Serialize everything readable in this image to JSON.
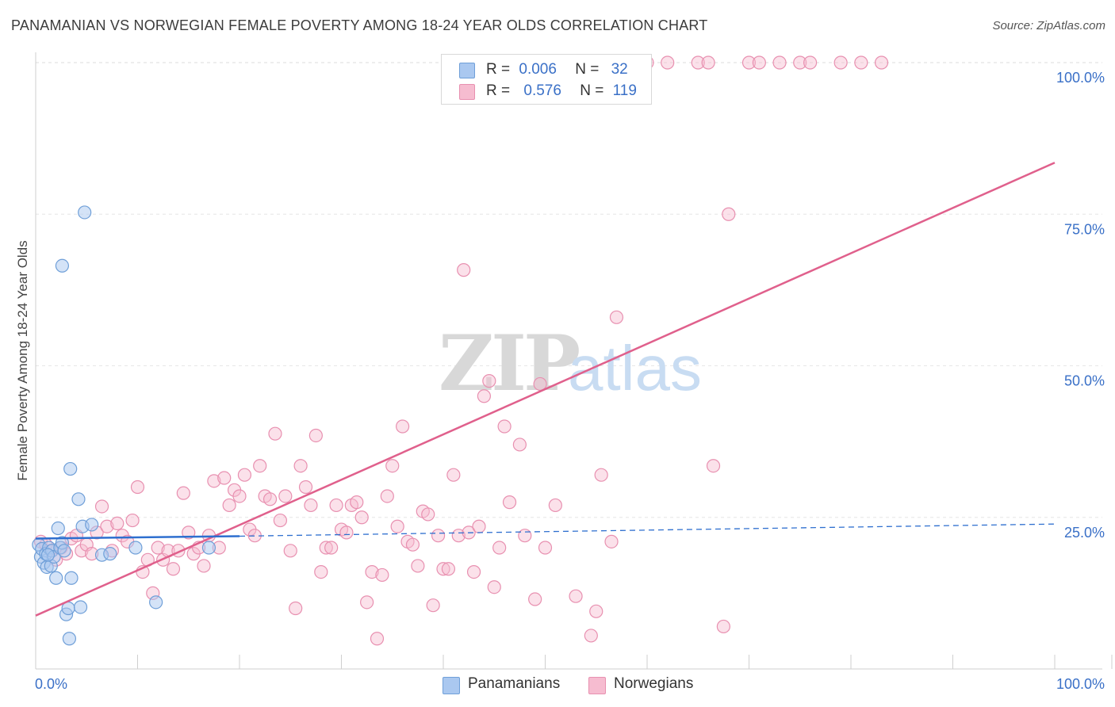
{
  "title": "PANAMANIAN VS NORWEGIAN FEMALE POVERTY AMONG 18-24 YEAR OLDS CORRELATION CHART",
  "source": "Source: ZipAtlas.com",
  "watermark": {
    "zip": "ZIP",
    "atlas": "atlas"
  },
  "legend_top": {
    "rows": [
      {
        "r_label": "R =",
        "r_value": "0.006",
        "n_label": "N =",
        "n_value": "32"
      },
      {
        "r_label": "R =",
        "r_value": "0.576",
        "n_label": "N =",
        "n_value": "119"
      }
    ]
  },
  "legend_bottom": {
    "series_a": "Panamanians",
    "series_b": "Norwegians"
  },
  "colors": {
    "blue_fill": "#aac8f0",
    "blue_stroke": "#6f9fd8",
    "blue_line": "#2e6fcf",
    "pink_fill": "#f6bcd0",
    "pink_stroke": "#e890b0",
    "pink_line": "#e0608c",
    "axis_label": "#3a70c7",
    "grid": "#e6e6e6"
  },
  "chart_data": {
    "type": "scatter",
    "title": "PANAMANIAN VS NORWEGIAN FEMALE POVERTY AMONG 18-24 YEAR OLDS CORRELATION CHART",
    "xlabel": "",
    "ylabel": "Female Poverty Among 18-24 Year Olds",
    "xlim": [
      0,
      100
    ],
    "ylim": [
      0,
      100
    ],
    "x_tick_labels": [
      "0.0%",
      "100.0%"
    ],
    "y_tick_labels": [
      "25.0%",
      "50.0%",
      "75.0%",
      "100.0%"
    ],
    "y_ticks": [
      25,
      50,
      75,
      100
    ],
    "grid": true,
    "legend_placement": "top-center",
    "series": [
      {
        "name": "Panamanians",
        "R": 0.006,
        "N": 32,
        "trend": {
          "x0": 0,
          "y0": 21.5,
          "x1": 20,
          "y1": 21.9,
          "dash_to_x": 100,
          "dash_to_y": 23.9
        },
        "points": [
          [
            0.3,
            20.5
          ],
          [
            0.5,
            18.5
          ],
          [
            0.6,
            19.8
          ],
          [
            0.8,
            17.5
          ],
          [
            1.0,
            19.0
          ],
          [
            1.1,
            16.8
          ],
          [
            1.3,
            20.0
          ],
          [
            1.5,
            17.0
          ],
          [
            1.6,
            19.5
          ],
          [
            1.8,
            18.5
          ],
          [
            2.0,
            15.0
          ],
          [
            2.2,
            23.2
          ],
          [
            2.4,
            20.0
          ],
          [
            2.6,
            20.8
          ],
          [
            2.8,
            19.5
          ],
          [
            3.0,
            9.0
          ],
          [
            3.2,
            10.0
          ],
          [
            3.3,
            5.0
          ],
          [
            3.5,
            15.0
          ],
          [
            3.4,
            33.0
          ],
          [
            4.2,
            28.0
          ],
          [
            4.4,
            10.2
          ],
          [
            4.6,
            23.5
          ],
          [
            4.8,
            75.3
          ],
          [
            2.6,
            66.5
          ],
          [
            5.5,
            23.8
          ],
          [
            6.5,
            18.8
          ],
          [
            7.3,
            19.0
          ],
          [
            9.8,
            20.0
          ],
          [
            11.8,
            11.0
          ],
          [
            17.0,
            20.0
          ],
          [
            1.2,
            18.8
          ]
        ]
      },
      {
        "name": "Norwegians",
        "R": 0.576,
        "N": 119,
        "trend": {
          "x0": 0,
          "y0": 8.8,
          "x1": 100,
          "y1": 83.5
        },
        "points": [
          [
            0.5,
            21.0
          ],
          [
            1.0,
            20.5
          ],
          [
            1.5,
            19.5
          ],
          [
            2.0,
            18.0
          ],
          [
            2.5,
            20.0
          ],
          [
            3.0,
            19.0
          ],
          [
            3.5,
            21.5
          ],
          [
            4.0,
            22.0
          ],
          [
            4.5,
            19.5
          ],
          [
            5.0,
            20.5
          ],
          [
            5.5,
            19.0
          ],
          [
            6.0,
            22.5
          ],
          [
            6.5,
            26.8
          ],
          [
            7.0,
            23.5
          ],
          [
            7.5,
            19.5
          ],
          [
            8.0,
            24.0
          ],
          [
            8.5,
            22.0
          ],
          [
            9.0,
            21.0
          ],
          [
            9.5,
            24.5
          ],
          [
            10.0,
            30.0
          ],
          [
            10.5,
            16.0
          ],
          [
            11.0,
            18.0
          ],
          [
            11.5,
            12.5
          ],
          [
            12.0,
            20.0
          ],
          [
            12.5,
            18.0
          ],
          [
            13.0,
            19.5
          ],
          [
            13.5,
            16.5
          ],
          [
            14.0,
            19.5
          ],
          [
            14.5,
            29.0
          ],
          [
            15.0,
            22.5
          ],
          [
            15.5,
            19.0
          ],
          [
            16.0,
            20.0
          ],
          [
            16.5,
            17.0
          ],
          [
            17.0,
            22.0
          ],
          [
            17.5,
            31.0
          ],
          [
            18.0,
            20.0
          ],
          [
            18.5,
            31.5
          ],
          [
            19.0,
            27.0
          ],
          [
            19.5,
            29.5
          ],
          [
            20.0,
            28.5
          ],
          [
            20.5,
            32.0
          ],
          [
            21.0,
            23.0
          ],
          [
            21.5,
            22.0
          ],
          [
            22.0,
            33.5
          ],
          [
            22.5,
            28.5
          ],
          [
            23.0,
            28.0
          ],
          [
            23.5,
            38.8
          ],
          [
            24.0,
            24.5
          ],
          [
            24.5,
            28.5
          ],
          [
            25.0,
            19.5
          ],
          [
            25.5,
            10.0
          ],
          [
            26.0,
            33.5
          ],
          [
            26.5,
            30.0
          ],
          [
            27.0,
            27.0
          ],
          [
            27.5,
            38.5
          ],
          [
            28.0,
            16.0
          ],
          [
            28.5,
            20.0
          ],
          [
            29.0,
            20.0
          ],
          [
            29.5,
            27.0
          ],
          [
            30.0,
            23.0
          ],
          [
            30.5,
            22.5
          ],
          [
            31.0,
            27.0
          ],
          [
            31.5,
            27.5
          ],
          [
            32.0,
            25.0
          ],
          [
            32.5,
            11.0
          ],
          [
            33.0,
            16.0
          ],
          [
            33.5,
            5.0
          ],
          [
            34.0,
            15.5
          ],
          [
            34.5,
            28.5
          ],
          [
            35.0,
            33.5
          ],
          [
            35.5,
            23.5
          ],
          [
            36.0,
            40.0
          ],
          [
            36.5,
            21.0
          ],
          [
            37.0,
            20.5
          ],
          [
            37.5,
            17.0
          ],
          [
            38.0,
            26.0
          ],
          [
            38.5,
            25.5
          ],
          [
            39.0,
            10.5
          ],
          [
            39.5,
            22.0
          ],
          [
            40.0,
            16.5
          ],
          [
            40.5,
            16.5
          ],
          [
            41.0,
            32.0
          ],
          [
            41.5,
            22.0
          ],
          [
            42.0,
            65.8
          ],
          [
            42.5,
            22.5
          ],
          [
            43.0,
            16.0
          ],
          [
            43.5,
            23.5
          ],
          [
            44.0,
            45.0
          ],
          [
            44.5,
            47.5
          ],
          [
            45.0,
            13.5
          ],
          [
            45.5,
            20.0
          ],
          [
            46.0,
            40.0
          ],
          [
            46.5,
            27.5
          ],
          [
            47.5,
            37.0
          ],
          [
            48.0,
            22.0
          ],
          [
            49.0,
            11.5
          ],
          [
            49.5,
            47.0
          ],
          [
            50.0,
            20.0
          ],
          [
            51.0,
            27.0
          ],
          [
            53.0,
            12.0
          ],
          [
            54.5,
            5.5
          ],
          [
            55.0,
            9.5
          ],
          [
            55.5,
            32.0
          ],
          [
            56.5,
            21.0
          ],
          [
            57.0,
            58.0
          ],
          [
            60.0,
            100.0
          ],
          [
            62.0,
            100.0
          ],
          [
            65.0,
            100.0
          ],
          [
            66.0,
            100.0
          ],
          [
            66.5,
            33.5
          ],
          [
            67.5,
            7.0
          ],
          [
            68.0,
            75.0
          ],
          [
            70.0,
            100.0
          ],
          [
            71.0,
            100.0
          ],
          [
            73.0,
            100.0
          ],
          [
            75.0,
            100.0
          ],
          [
            76.0,
            100.0
          ],
          [
            79.0,
            100.0
          ],
          [
            81.0,
            100.0
          ],
          [
            83.0,
            100.0
          ]
        ]
      }
    ]
  }
}
